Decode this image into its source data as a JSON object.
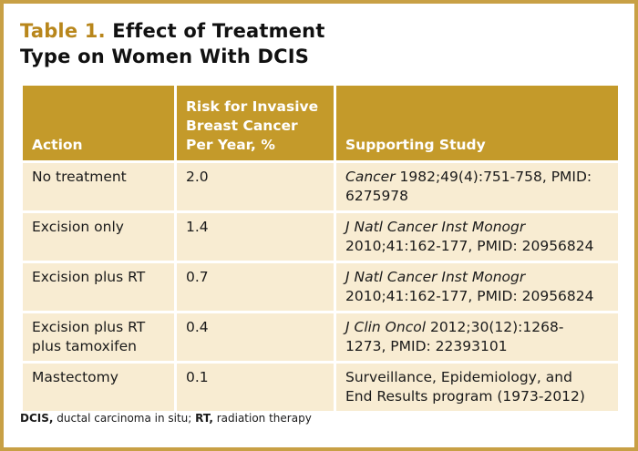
{
  "title": {
    "number": "Table 1.",
    "line1": "Effect of Treatment",
    "line2": "Type on Women With DCIS"
  },
  "table": {
    "headers": {
      "action": "Action",
      "risk_line1": "Risk for Invasive",
      "risk_line2": "Breast Cancer",
      "risk_line3": "Per Year, %",
      "study": "Supporting Study"
    },
    "rows": [
      {
        "action_line1": "No treatment",
        "action_line2": "",
        "risk": "2.0",
        "study_journal": "Cancer",
        "study_line1_rest": " 1982;49(4):751-758, PMID:",
        "study_line2": "6275978"
      },
      {
        "action_line1": "Excision only",
        "action_line2": "",
        "risk": "1.4",
        "study_journal": "J Natl Cancer Inst Monogr",
        "study_line1_rest": "",
        "study_line2": "2010;41:162-177, PMID: 20956824"
      },
      {
        "action_line1": "Excision plus RT",
        "action_line2": "",
        "risk": "0.7",
        "study_journal": "J Natl Cancer Inst Monogr",
        "study_line1_rest": "",
        "study_line2": "2010;41:162-177, PMID: 20956824"
      },
      {
        "action_line1": "Excision plus RT",
        "action_line2": "plus tamoxifen",
        "risk": "0.4",
        "study_journal": "J Clin Oncol",
        "study_line1_rest": " 2012;30(12):1268-",
        "study_line2": "1273, PMID: 22393101"
      },
      {
        "action_line1": "Mastectomy",
        "action_line2": "",
        "risk": "0.1",
        "study_journal": "",
        "study_line1_rest": "Surveillance, Epidemiology, and",
        "study_line2": "End Results program (1973-2012)"
      }
    ]
  },
  "footnote": {
    "abbr1": "DCIS,",
    "def1": " ductal carcinoma in situ; ",
    "abbr2": "RT,",
    "def2": " radiation therapy"
  },
  "colors": {
    "border": "#c8a045",
    "header_bg": "#c49a2a",
    "row_bg": "#f8ecd2",
    "title_number": "#b8861b"
  }
}
